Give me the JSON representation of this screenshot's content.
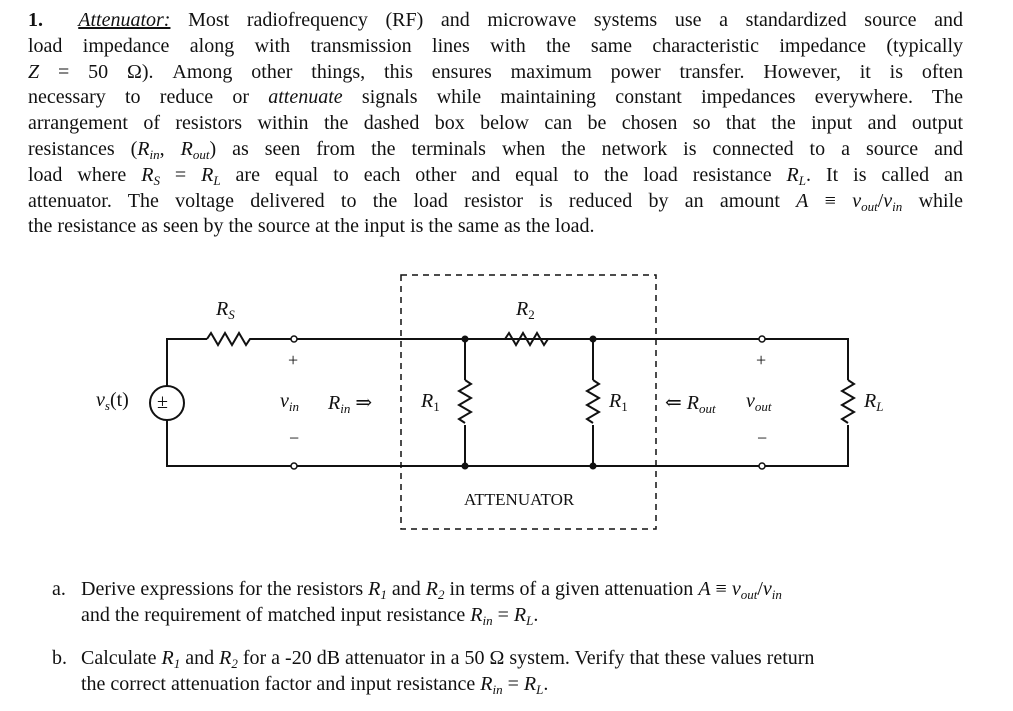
{
  "problem": {
    "lines": [
      [
        {
          "t": "1.",
          "s": "b"
        },
        {
          "t": "  "
        },
        {
          "t": "Attenuator:",
          "s": "u"
        },
        {
          "t": " Most radiofrequency (RF) and microwave systems use a standardized source and"
        }
      ],
      [
        {
          "t": "load impedance along with transmission lines with the same characteristic impedance (typically"
        }
      ],
      [
        {
          "t": "Z",
          "s": "i"
        },
        {
          "t": " = 50 Ω).  Among other things, this ensures maximum power transfer.  However, it is often"
        }
      ],
      [
        {
          "t": "necessary to reduce or "
        },
        {
          "t": "attenuate",
          "s": "i"
        },
        {
          "t": " signals while maintaining constant impedances everywhere. The"
        }
      ],
      [
        {
          "t": "arrangement of resistors within the dashed box below can be chosen so that the input and output"
        }
      ],
      [
        {
          "t": "resistances ("
        },
        {
          "t": "R",
          "s": "i"
        },
        {
          "t": "in",
          "s": "sub"
        },
        {
          "t": ", "
        },
        {
          "t": "R",
          "s": "i"
        },
        {
          "t": "out",
          "s": "sub"
        },
        {
          "t": ") as seen from the terminals when the network is connected to a source and"
        }
      ],
      [
        {
          "t": "load where "
        },
        {
          "t": "R",
          "s": "i"
        },
        {
          "t": "S",
          "s": "sub"
        },
        {
          "t": " = "
        },
        {
          "t": "R",
          "s": "i"
        },
        {
          "t": "L",
          "s": "sub"
        },
        {
          "t": " are equal to each other and equal to the load resistance "
        },
        {
          "t": "R",
          "s": "i"
        },
        {
          "t": "L",
          "s": "sub"
        },
        {
          "t": ". It is called an"
        }
      ],
      [
        {
          "t": "attenuator. The voltage delivered to the load resistor is reduced by an amount "
        },
        {
          "t": "A",
          "s": "i"
        },
        {
          "t": " ≡ "
        },
        {
          "t": "v",
          "s": "i"
        },
        {
          "t": "out",
          "s": "sub"
        },
        {
          "t": "/"
        },
        {
          "t": "v",
          "s": "i"
        },
        {
          "t": "in",
          "s": "sub"
        },
        {
          "t": " while"
        }
      ],
      [
        {
          "t": "the resistance as seen by the source at the input is the same as the load."
        }
      ]
    ]
  },
  "circuit": {
    "source": "v",
    "source_sub": "s",
    "source_arg": "(t)",
    "source_symbol": "±",
    "rs": "R",
    "rs_sub": "S",
    "r2": "R",
    "r2_sub": "2",
    "r1_left": "R",
    "r1_left_sub": "1",
    "r1_right": "R",
    "r1_right_sub": "1",
    "rl": "R",
    "rl_sub": "L",
    "vin": "v",
    "vin_sub": "in",
    "rin": "R",
    "rin_sub": "in",
    "rin_arrow": "⇒",
    "rout": "R",
    "rout_sub": "out",
    "rout_arrow": "⇐",
    "vout": "v",
    "vout_sub": "out",
    "plus": "+",
    "minus": "−",
    "box_label": "ATTENUATOR"
  },
  "parts": [
    {
      "marker": "a.",
      "lines": [
        [
          {
            "t": "Derive expressions for the resistors "
          },
          {
            "t": "R",
            "s": "i"
          },
          {
            "t": "1",
            "s": "sub"
          },
          {
            "t": " and "
          },
          {
            "t": "R",
            "s": "i"
          },
          {
            "t": "2",
            "s": "sub"
          },
          {
            "t": " in terms of a given attenuation "
          },
          {
            "t": "A",
            "s": "i"
          },
          {
            "t": " ≡ "
          },
          {
            "t": "v",
            "s": "i"
          },
          {
            "t": "out",
            "s": "sub"
          },
          {
            "t": "/"
          },
          {
            "t": "v",
            "s": "i"
          },
          {
            "t": "in",
            "s": "sub"
          }
        ],
        [
          {
            "t": "and the requirement of matched input resistance "
          },
          {
            "t": "R",
            "s": "i"
          },
          {
            "t": "in",
            "s": "sub"
          },
          {
            "t": " = "
          },
          {
            "t": "R",
            "s": "i"
          },
          {
            "t": "L",
            "s": "sub"
          },
          {
            "t": "."
          }
        ]
      ]
    },
    {
      "marker": "b.",
      "lines": [
        [
          {
            "t": "Calculate "
          },
          {
            "t": "R",
            "s": "i"
          },
          {
            "t": "1",
            "s": "sub"
          },
          {
            "t": " and "
          },
          {
            "t": "R",
            "s": "i"
          },
          {
            "t": "2",
            "s": "sub"
          },
          {
            "t": " for a -20 dB attenuator in a 50 Ω system. Verify that these values return"
          }
        ],
        [
          {
            "t": "the correct attenuation factor and input resistance "
          },
          {
            "t": "R",
            "s": "i"
          },
          {
            "t": "in",
            "s": "sub"
          },
          {
            "t": " = "
          },
          {
            "t": "R",
            "s": "i"
          },
          {
            "t": "L",
            "s": "sub"
          },
          {
            "t": "."
          }
        ]
      ]
    }
  ]
}
